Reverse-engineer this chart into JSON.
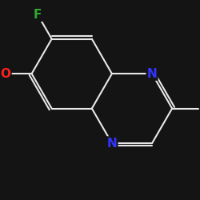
{
  "background_color": "#141414",
  "bond_color": "#e8e8e8",
  "atom_colors": {
    "C": "#e8e8e8",
    "N": "#3333ff",
    "O": "#ff2020",
    "F": "#33aa33"
  },
  "bond_width": 1.5,
  "font_size": 10,
  "figsize": [
    2.5,
    2.5
  ],
  "dpi": 100
}
